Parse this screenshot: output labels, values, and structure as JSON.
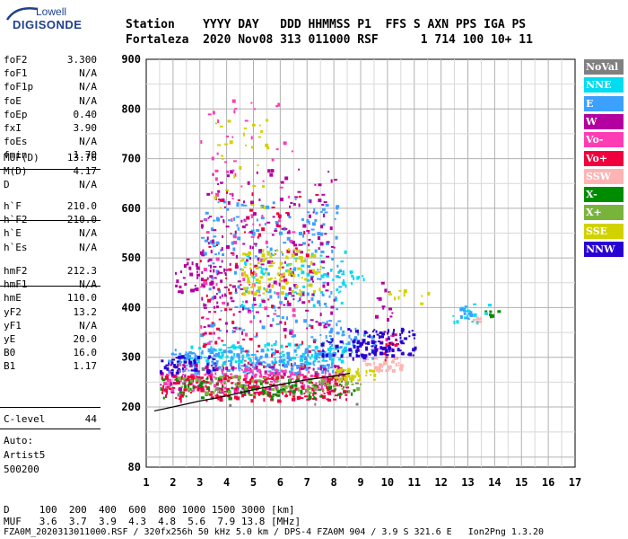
{
  "logo": {
    "top": "Lowell",
    "main": "DIGISONDE"
  },
  "header": {
    "line1": "Station    YYYY DAY   DDD HHMMSS P1  FFS S AXN PPS IGA PS",
    "line2": "Fortaleza  2020 Nov08 313 011000 RSF      1 714 100 10+ 11"
  },
  "params_a": [
    {
      "k": "foF2",
      "v": "3.300"
    },
    {
      "k": "foF1",
      "v": "N/A"
    },
    {
      "k": "foF1p",
      "v": "N/A"
    },
    {
      "k": "foE",
      "v": "N/A"
    },
    {
      "k": "foEp",
      "v": "0.40"
    },
    {
      "k": "fxI",
      "v": "3.90"
    },
    {
      "k": "foEs",
      "v": "N/A"
    },
    {
      "k": "fmin",
      "v": "1.70"
    }
  ],
  "params_b": [
    {
      "k": "MUF(D)",
      "v": "13.76"
    },
    {
      "k": "M(D)",
      "v": "4.17"
    },
    {
      "k": "D",
      "v": "N/A"
    }
  ],
  "params_c": [
    {
      "k": "h`F",
      "v": "210.0"
    },
    {
      "k": "h`F2",
      "v": "210.0"
    },
    {
      "k": "h`E",
      "v": "N/A"
    },
    {
      "k": "h`Es",
      "v": "N/A"
    }
  ],
  "params_d": [
    {
      "k": "hmF2",
      "v": "212.3"
    },
    {
      "k": "hmF1",
      "v": "N/A"
    },
    {
      "k": "hmE",
      "v": "110.0"
    },
    {
      "k": "yF2",
      "v": "13.2"
    },
    {
      "k": "yF1",
      "v": "N/A"
    },
    {
      "k": "yE",
      "v": "20.0"
    },
    {
      "k": "B0",
      "v": "16.0"
    },
    {
      "k": "B1",
      "v": "1.17"
    }
  ],
  "params_e": [
    {
      "k": "C-level",
      "v": "44"
    }
  ],
  "scaling": {
    "line1": "Auto:",
    "line2": "Artist5",
    "line3": "500200"
  },
  "legend": [
    {
      "label": "NoVal",
      "color": "#808080"
    },
    {
      "label": "NNE",
      "color": "#00dcf0"
    },
    {
      "label": "E",
      "color": "#3ca0ff"
    },
    {
      "label": "W",
      "color": "#b400a0"
    },
    {
      "label": "Vo-",
      "color": "#ff3cb4"
    },
    {
      "label": "Vo+",
      "color": "#f0003c"
    },
    {
      "label": "SSW",
      "color": "#ffb4b4"
    },
    {
      "label": "X-",
      "color": "#008c00"
    },
    {
      "label": "X+",
      "color": "#78b43c"
    },
    {
      "label": "SSE",
      "color": "#d2d200"
    },
    {
      "label": "NNW",
      "color": "#2800d2"
    }
  ],
  "footer": {
    "line1": "D     100  200  400  600  800 1000 1500 3000 [km]",
    "line2": "MUF   3.6  3.7  3.9  4.3  4.8  5.6  7.9 13.8 [MHz]",
    "line3": "FZA0M_2020313011000.RSF / 320fx256h 50 kHz 5.0 km / DPS-4 FZA0M 904 / 3.9 S 321.6 E   Ion2Png 1.3.20"
  },
  "chart_data": {
    "type": "scatter",
    "title": "",
    "xlabel": "",
    "ylabel": "",
    "xlim": [
      1,
      17
    ],
    "ylim": [
      80,
      900
    ],
    "x_ticks": [
      1,
      2,
      3,
      4,
      5,
      6,
      7,
      8,
      9,
      10,
      11,
      12,
      13,
      14,
      15,
      16,
      17
    ],
    "y_ticks": [
      80,
      200,
      300,
      400,
      500,
      600,
      700,
      800,
      900
    ],
    "grid": true,
    "legend_position": "right",
    "trace_line": {
      "x": [
        1.3,
        2.0,
        3.0,
        4.0,
        5.0,
        6.0,
        7.0,
        8.0,
        8.6
      ],
      "y": [
        192,
        200,
        212,
        222,
        235,
        245,
        255,
        262,
        268
      ]
    },
    "series": [
      {
        "name": "NoVal",
        "color": "#808080",
        "clusters": [
          {
            "x": [
              1.5,
              9.0
            ],
            "y": [
              205,
              300
            ],
            "n": 60
          }
        ]
      },
      {
        "name": "NNE",
        "color": "#00dcf0",
        "clusters": [
          {
            "x": [
              2.5,
              8.5
            ],
            "y": [
              290,
              330
            ],
            "n": 120
          },
          {
            "x": [
              4.5,
              8.5
            ],
            "y": [
              400,
              520
            ],
            "n": 60
          },
          {
            "x": [
              7.5,
              9.2
            ],
            "y": [
              450,
              480
            ],
            "n": 20
          },
          {
            "x": [
              12.3,
              13.8
            ],
            "y": [
              370,
              410
            ],
            "n": 18
          }
        ]
      },
      {
        "name": "E",
        "color": "#3ca0ff",
        "clusters": [
          {
            "x": [
              1.7,
              8.0
            ],
            "y": [
              270,
              320
            ],
            "n": 220
          },
          {
            "x": [
              3.0,
              8.3
            ],
            "y": [
              330,
              620
            ],
            "n": 200
          },
          {
            "x": [
              7.5,
              9.5
            ],
            "y": [
              300,
              360
            ],
            "n": 40
          },
          {
            "x": [
              12.5,
              13.2
            ],
            "y": [
              380,
              405
            ],
            "n": 10
          }
        ]
      },
      {
        "name": "W",
        "color": "#b400a0",
        "clusters": [
          {
            "x": [
              1.5,
              8.5
            ],
            "y": [
              230,
              290
            ],
            "n": 120
          },
          {
            "x": [
              3.0,
              8.0
            ],
            "y": [
              350,
              680
            ],
            "n": 220
          },
          {
            "x": [
              2.0,
              4.0
            ],
            "y": [
              430,
              500
            ],
            "n": 50
          },
          {
            "x": [
              9.5,
              10.2
            ],
            "y": [
              320,
              460
            ],
            "n": 15
          }
        ]
      },
      {
        "name": "Vo-",
        "color": "#ff3cb4",
        "clusters": [
          {
            "x": [
              1.5,
              8.5
            ],
            "y": [
              235,
              280
            ],
            "n": 160
          },
          {
            "x": [
              3.0,
              6.5
            ],
            "y": [
              330,
              820
            ],
            "n": 90
          },
          {
            "x": [
              9.5,
              10.2
            ],
            "y": [
              310,
              350
            ],
            "n": 10
          }
        ]
      },
      {
        "name": "Vo+",
        "color": "#f0003c",
        "clusters": [
          {
            "x": [
              1.5,
              8.5
            ],
            "y": [
              215,
              265
            ],
            "n": 220
          },
          {
            "x": [
              3.0,
              7.5
            ],
            "y": [
              280,
              640
            ],
            "n": 90
          },
          {
            "x": [
              9.6,
              10.4
            ],
            "y": [
              295,
              350
            ],
            "n": 12
          }
        ]
      },
      {
        "name": "SSW",
        "color": "#ffb4b4",
        "clusters": [
          {
            "x": [
              9.0,
              10.5
            ],
            "y": [
              275,
              300
            ],
            "n": 35
          },
          {
            "x": [
              13.0,
              13.5
            ],
            "y": [
              370,
              385
            ],
            "n": 6
          }
        ]
      },
      {
        "name": "X-",
        "color": "#008c00",
        "clusters": [
          {
            "x": [
              1.5,
              8.8
            ],
            "y": [
              220,
              260
            ],
            "n": 80
          },
          {
            "x": [
              13.6,
              14.1
            ],
            "y": [
              380,
              395
            ],
            "n": 6
          }
        ]
      },
      {
        "name": "X+",
        "color": "#78b43c",
        "clusters": [
          {
            "x": [
              2.0,
              9.0
            ],
            "y": [
              225,
              265
            ],
            "n": 80
          }
        ]
      },
      {
        "name": "SSE",
        "color": "#d2d200",
        "clusters": [
          {
            "x": [
              4.5,
              7.5
            ],
            "y": [
              430,
              520
            ],
            "n": 110
          },
          {
            "x": [
              3.5,
              5.5
            ],
            "y": [
              600,
              780
            ],
            "n": 30
          },
          {
            "x": [
              8.0,
              9.5
            ],
            "y": [
              255,
              280
            ],
            "n": 40
          },
          {
            "x": [
              10.0,
              11.5
            ],
            "y": [
              410,
              440
            ],
            "n": 10
          }
        ]
      },
      {
        "name": "NNW",
        "color": "#2800d2",
        "clusters": [
          {
            "x": [
              1.5,
              3.5
            ],
            "y": [
              270,
              305
            ],
            "n": 40
          },
          {
            "x": [
              8.5,
              11.0
            ],
            "y": [
              305,
              360
            ],
            "n": 90
          },
          {
            "x": [
              7.5,
              9.5
            ],
            "y": [
              300,
              340
            ],
            "n": 30
          }
        ]
      }
    ]
  }
}
